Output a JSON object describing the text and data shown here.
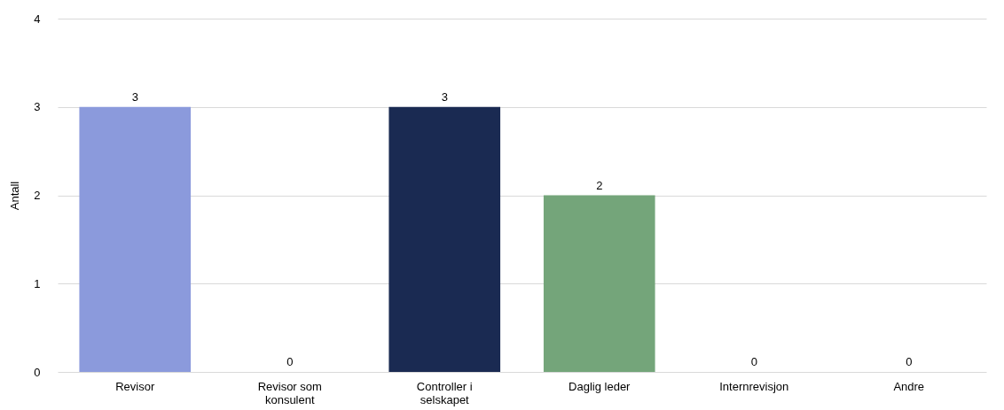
{
  "chart_data": {
    "type": "bar",
    "ylabel": "Antall",
    "categories": [
      "Revisor",
      "Revisor som konsulent",
      "Controller i selskapet",
      "Daglig leder",
      "Internrevisjon",
      "Andre"
    ],
    "values": [
      3,
      0,
      3,
      2,
      0,
      0
    ],
    "colors": [
      "#8b9adc",
      "#8b9adc",
      "#1a2a52",
      "#74a57a",
      "#8b9adc",
      "#8b9adc"
    ],
    "ylim": [
      0,
      4
    ],
    "yticks": [
      0,
      1,
      2,
      3,
      4
    ],
    "grid": "y",
    "data_labels": true
  }
}
